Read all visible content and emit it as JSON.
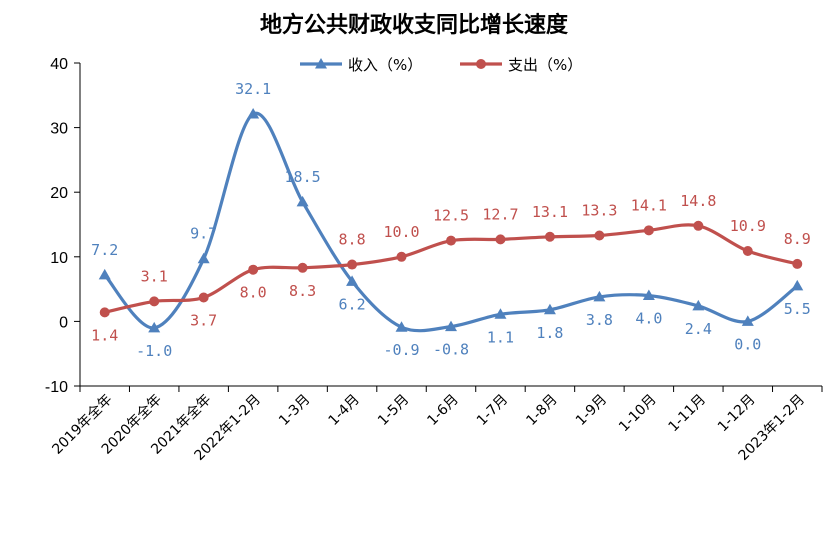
{
  "chart_data": {
    "type": "line",
    "title": "地方公共财政收支同比增长速度",
    "xlabel": "",
    "ylabel": "",
    "ylim": [
      -10,
      40
    ],
    "yticks": [
      -10,
      0,
      10,
      20,
      30,
      40
    ],
    "grid": false,
    "legend_position": "top",
    "categories": [
      "2019年全年",
      "2020年全年",
      "2021年全年",
      "2022年1-2月",
      "1-3月",
      "1-4月",
      "1-5月",
      "1-6月",
      "1-7月",
      "1-8月",
      "1-9月",
      "1-10月",
      "1-11月",
      "1-12月",
      "2023年1-2月"
    ],
    "series": [
      {
        "name": "收入（%）",
        "color": "#4f81bd",
        "marker": "triangle",
        "values": [
          7.2,
          -1.0,
          9.7,
          32.1,
          18.5,
          6.2,
          -0.9,
          -0.8,
          1.1,
          1.8,
          3.8,
          4.0,
          2.4,
          0.0,
          5.5
        ],
        "labels": [
          "7.2",
          "-1.0",
          "9.7",
          "32.1",
          "18.5",
          "6.2",
          "-0.9",
          "-0.8",
          "1.1",
          "1.8",
          "3.8",
          "4.0",
          "2.4",
          "0.0",
          "5.5"
        ]
      },
      {
        "name": "支出（%）",
        "color": "#c0504d",
        "marker": "circle",
        "values": [
          1.4,
          3.1,
          3.7,
          8.0,
          8.3,
          8.8,
          10.0,
          12.5,
          12.7,
          13.1,
          13.3,
          14.1,
          14.8,
          10.9,
          8.9
        ],
        "labels": [
          "1.4",
          "3.1",
          "3.7",
          "8.0",
          "8.3",
          "8.8",
          "10.0",
          "12.5",
          "12.7",
          "13.1",
          "13.3",
          "14.1",
          "14.8",
          "10.9",
          "8.9"
        ]
      }
    ]
  }
}
